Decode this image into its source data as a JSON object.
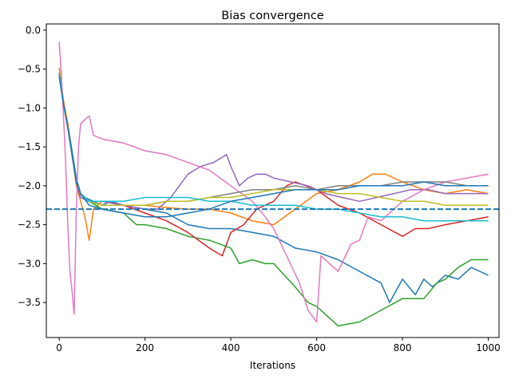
{
  "chart_data": {
    "type": "line",
    "title": "Bias convergence",
    "xlabel": "Iterations",
    "ylabel": "",
    "xlim": [
      -30,
      1025
    ],
    "ylim": [
      -3.95,
      0.08
    ],
    "xticks": [
      0,
      200,
      400,
      600,
      800,
      1000
    ],
    "yticks": [
      0.0,
      -0.5,
      -1.0,
      -1.5,
      -2.0,
      -2.5,
      -3.0,
      -3.5
    ],
    "ytick_labels": [
      "0.0",
      "−0.5",
      "−1.0",
      "−1.5",
      "−2.0",
      "−2.5",
      "−3.0",
      "−3.5"
    ],
    "reference_line": {
      "y": -2.3,
      "style": "dashed",
      "color": "#1f77b4"
    },
    "series": [
      {
        "color": "#1f77b4",
        "x": [
          0,
          10,
          20,
          30,
          40,
          50,
          60,
          80,
          100,
          120,
          150,
          200,
          250,
          300,
          350,
          400,
          450,
          500,
          550,
          600,
          650,
          700,
          750,
          770,
          800,
          830,
          850,
          870,
          900,
          930,
          960,
          1000
        ],
        "y": [
          -0.58,
          -0.95,
          -1.2,
          -1.55,
          -1.9,
          -2.1,
          -2.15,
          -2.2,
          -2.25,
          -2.2,
          -2.25,
          -2.3,
          -2.35,
          -2.5,
          -2.55,
          -2.55,
          -2.6,
          -2.65,
          -2.8,
          -2.85,
          -2.95,
          -3.1,
          -3.25,
          -3.5,
          -3.2,
          -3.4,
          -3.2,
          -3.3,
          -3.15,
          -3.2,
          -3.05,
          -3.15
        ]
      },
      {
        "color": "#ff7f0e",
        "x": [
          0,
          10,
          20,
          30,
          40,
          50,
          60,
          70,
          80,
          100,
          150,
          200,
          250,
          300,
          350,
          400,
          450,
          500,
          550,
          600,
          650,
          700,
          730,
          760,
          800,
          850,
          900,
          950,
          1000
        ],
        "y": [
          -0.48,
          -0.9,
          -1.2,
          -1.6,
          -2.0,
          -2.2,
          -2.4,
          -2.7,
          -2.3,
          -2.2,
          -2.25,
          -2.25,
          -2.28,
          -2.3,
          -2.3,
          -2.35,
          -2.45,
          -2.5,
          -2.3,
          -2.1,
          -2.05,
          -1.95,
          -1.85,
          -1.85,
          -1.95,
          -2.05,
          -2.1,
          -2.05,
          -2.1
        ]
      },
      {
        "color": "#2ca02c",
        "x": [
          0,
          10,
          20,
          30,
          40,
          50,
          70,
          100,
          150,
          180,
          200,
          250,
          300,
          350,
          400,
          420,
          450,
          480,
          500,
          550,
          580,
          600,
          620,
          650,
          700,
          750,
          800,
          850,
          880,
          900,
          930,
          960,
          1000
        ],
        "y": [
          -0.55,
          -0.95,
          -1.25,
          -1.6,
          -1.95,
          -2.15,
          -2.2,
          -2.3,
          -2.35,
          -2.5,
          -2.5,
          -2.55,
          -2.65,
          -2.7,
          -2.8,
          -3.0,
          -2.95,
          -3.0,
          -3.0,
          -3.3,
          -3.5,
          -3.55,
          -3.65,
          -3.8,
          -3.75,
          -3.6,
          -3.45,
          -3.45,
          -3.25,
          -3.2,
          -3.05,
          -2.95,
          -2.95
        ]
      },
      {
        "color": "#d62728",
        "x": [
          0,
          10,
          20,
          30,
          40,
          50,
          70,
          100,
          150,
          200,
          250,
          300,
          350,
          380,
          400,
          430,
          460,
          500,
          530,
          550,
          600,
          650,
          700,
          750,
          800,
          830,
          860,
          900,
          950,
          1000
        ],
        "y": [
          -0.55,
          -0.95,
          -1.25,
          -1.6,
          -1.95,
          -2.15,
          -2.2,
          -2.2,
          -2.25,
          -2.35,
          -2.45,
          -2.6,
          -2.8,
          -2.9,
          -2.6,
          -2.5,
          -2.3,
          -2.2,
          -2.0,
          -1.95,
          -2.05,
          -2.25,
          -2.35,
          -2.5,
          -2.65,
          -2.55,
          -2.55,
          -2.5,
          -2.45,
          -2.4
        ]
      },
      {
        "color": "#9467bd",
        "x": [
          0,
          10,
          20,
          30,
          40,
          50,
          70,
          100,
          150,
          200,
          230,
          260,
          280,
          300,
          330,
          360,
          390,
          400,
          420,
          440,
          460,
          480,
          500,
          540,
          580,
          620,
          660,
          700,
          740,
          780,
          820,
          860,
          900,
          950,
          1000
        ],
        "y": [
          -0.55,
          -0.95,
          -1.25,
          -1.6,
          -1.95,
          -2.15,
          -2.2,
          -2.2,
          -2.25,
          -2.3,
          -2.3,
          -2.15,
          -2.0,
          -1.85,
          -1.75,
          -1.7,
          -1.6,
          -1.75,
          -2.0,
          -1.9,
          -1.85,
          -1.85,
          -1.9,
          -1.95,
          -2.0,
          -2.1,
          -2.15,
          -2.2,
          -2.15,
          -2.1,
          -2.05,
          -2.05,
          -2.1,
          -2.1,
          -2.1
        ]
      },
      {
        "color": "#e377c2",
        "x": [
          0,
          5,
          10,
          15,
          20,
          25,
          30,
          35,
          40,
          45,
          50,
          60,
          70,
          80,
          100,
          150,
          200,
          250,
          300,
          350,
          400,
          450,
          480,
          500,
          530,
          560,
          580,
          600,
          610,
          630,
          650,
          680,
          700,
          720,
          750,
          800,
          850,
          900,
          950,
          1000
        ],
        "y": [
          -0.15,
          -0.55,
          -1.1,
          -1.7,
          -2.5,
          -3.1,
          -3.35,
          -3.65,
          -2.3,
          -1.5,
          -1.2,
          -1.15,
          -1.1,
          -1.35,
          -1.4,
          -1.45,
          -1.55,
          -1.6,
          -1.7,
          -1.8,
          -2.0,
          -2.2,
          -2.4,
          -2.55,
          -2.9,
          -3.25,
          -3.6,
          -3.75,
          -2.9,
          -3.0,
          -3.1,
          -2.75,
          -2.7,
          -2.4,
          -2.45,
          -2.2,
          -2.05,
          -1.95,
          -1.9,
          -1.85
        ]
      },
      {
        "color": "#7f7f7f",
        "x": [
          0,
          10,
          20,
          30,
          40,
          50,
          70,
          100,
          150,
          200,
          250,
          300,
          350,
          400,
          450,
          500,
          550,
          600,
          650,
          700,
          750,
          800,
          850,
          900,
          950,
          1000
        ],
        "y": [
          -0.55,
          -0.95,
          -1.25,
          -1.6,
          -1.95,
          -2.1,
          -2.2,
          -2.25,
          -2.25,
          -2.25,
          -2.2,
          -2.2,
          -2.15,
          -2.1,
          -2.05,
          -2.05,
          -2.0,
          -2.05,
          -2.0,
          -2.0,
          -2.0,
          -1.95,
          -1.95,
          -1.95,
          -2.0,
          -2.0
        ]
      },
      {
        "color": "#bcbd22",
        "x": [
          0,
          10,
          20,
          30,
          40,
          50,
          70,
          100,
          150,
          200,
          250,
          300,
          350,
          400,
          450,
          500,
          550,
          600,
          650,
          700,
          750,
          800,
          850,
          900,
          950,
          1000
        ],
        "y": [
          -0.55,
          -0.95,
          -1.25,
          -1.6,
          -1.95,
          -2.1,
          -2.2,
          -2.25,
          -2.25,
          -2.25,
          -2.2,
          -2.2,
          -2.15,
          -2.15,
          -2.1,
          -2.05,
          -2.05,
          -2.05,
          -2.1,
          -2.1,
          -2.15,
          -2.2,
          -2.2,
          -2.25,
          -2.25,
          -2.25
        ]
      },
      {
        "color": "#17becf",
        "x": [
          0,
          10,
          20,
          30,
          40,
          50,
          70,
          100,
          150,
          200,
          250,
          300,
          350,
          400,
          450,
          500,
          550,
          600,
          650,
          700,
          750,
          800,
          850,
          900,
          950,
          1000
        ],
        "y": [
          -0.55,
          -0.95,
          -1.25,
          -1.6,
          -1.95,
          -2.1,
          -2.2,
          -2.2,
          -2.2,
          -2.15,
          -2.15,
          -2.15,
          -2.2,
          -2.2,
          -2.25,
          -2.25,
          -2.25,
          -2.3,
          -2.3,
          -2.35,
          -2.4,
          -2.4,
          -2.45,
          -2.45,
          -2.45,
          -2.45
        ]
      },
      {
        "color": "#1f77b4",
        "x": [
          0,
          10,
          20,
          30,
          40,
          50,
          70,
          100,
          150,
          200,
          250,
          300,
          350,
          400,
          450,
          500,
          550,
          600,
          650,
          700,
          750,
          800,
          850,
          900,
          950,
          1000
        ],
        "y": [
          -0.6,
          -0.95,
          -1.25,
          -1.6,
          -1.95,
          -2.1,
          -2.25,
          -2.3,
          -2.35,
          -2.4,
          -2.4,
          -2.35,
          -2.3,
          -2.2,
          -2.15,
          -2.1,
          -2.05,
          -2.05,
          -2.05,
          -2.0,
          -2.0,
          -2.0,
          -1.95,
          -2.0,
          -2.0,
          -2.0
        ]
      }
    ]
  }
}
